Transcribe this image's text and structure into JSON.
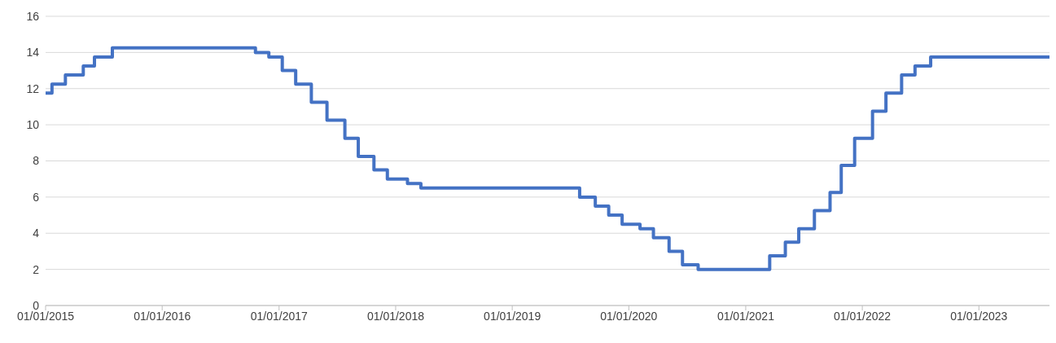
{
  "chart_data": {
    "type": "step",
    "color": "#4472c4",
    "grid": "y",
    "line_style": "solid",
    "x": [
      "2015-01-01",
      "2015-01-21",
      "2015-03-04",
      "2015-04-29",
      "2015-06-03",
      "2015-07-29",
      "2016-10-19",
      "2016-11-30",
      "2017-01-11",
      "2017-02-22",
      "2017-04-12",
      "2017-05-31",
      "2017-07-26",
      "2017-09-06",
      "2017-10-25",
      "2017-12-06",
      "2018-02-07",
      "2018-03-21",
      "2019-07-31",
      "2019-09-18",
      "2019-10-30",
      "2019-12-11",
      "2020-02-05",
      "2020-03-18",
      "2020-05-06",
      "2020-06-17",
      "2020-08-05",
      "2021-03-17",
      "2021-05-05",
      "2021-06-16",
      "2021-08-04",
      "2021-09-22",
      "2021-10-27",
      "2021-12-08",
      "2022-02-02",
      "2022-03-16",
      "2022-05-04",
      "2022-06-15",
      "2022-08-03",
      "2023-08-10"
    ],
    "values": [
      11.75,
      12.25,
      12.75,
      13.25,
      13.75,
      14.25,
      14,
      13.75,
      13,
      12.25,
      11.25,
      10.25,
      9.25,
      8.25,
      7.5,
      7,
      6.75,
      6.5,
      6,
      5.5,
      5,
      4.5,
      4.25,
      3.75,
      3,
      2.25,
      2,
      2.75,
      3.5,
      4.25,
      5.25,
      6.25,
      7.75,
      9.25,
      10.75,
      11.75,
      12.75,
      13.25,
      13.75,
      13.75
    ],
    "xlim": [
      "2015-01-01",
      "2023-08-10"
    ],
    "xticks": [
      {
        "value": "2015-01-01",
        "label": "01/01/2015"
      },
      {
        "value": "2016-01-01",
        "label": "01/01/2016"
      },
      {
        "value": "2017-01-01",
        "label": "01/01/2017"
      },
      {
        "value": "2018-01-01",
        "label": "01/01/2018"
      },
      {
        "value": "2019-01-01",
        "label": "01/01/2019"
      },
      {
        "value": "2020-01-01",
        "label": "01/01/2020"
      },
      {
        "value": "2021-01-01",
        "label": "01/01/2021"
      },
      {
        "value": "2022-01-01",
        "label": "01/01/2022"
      },
      {
        "value": "2023-01-01",
        "label": "01/01/2023"
      }
    ],
    "ylim": [
      0,
      16
    ],
    "yticks": [
      0,
      2,
      4,
      6,
      8,
      10,
      12,
      14,
      16
    ]
  }
}
